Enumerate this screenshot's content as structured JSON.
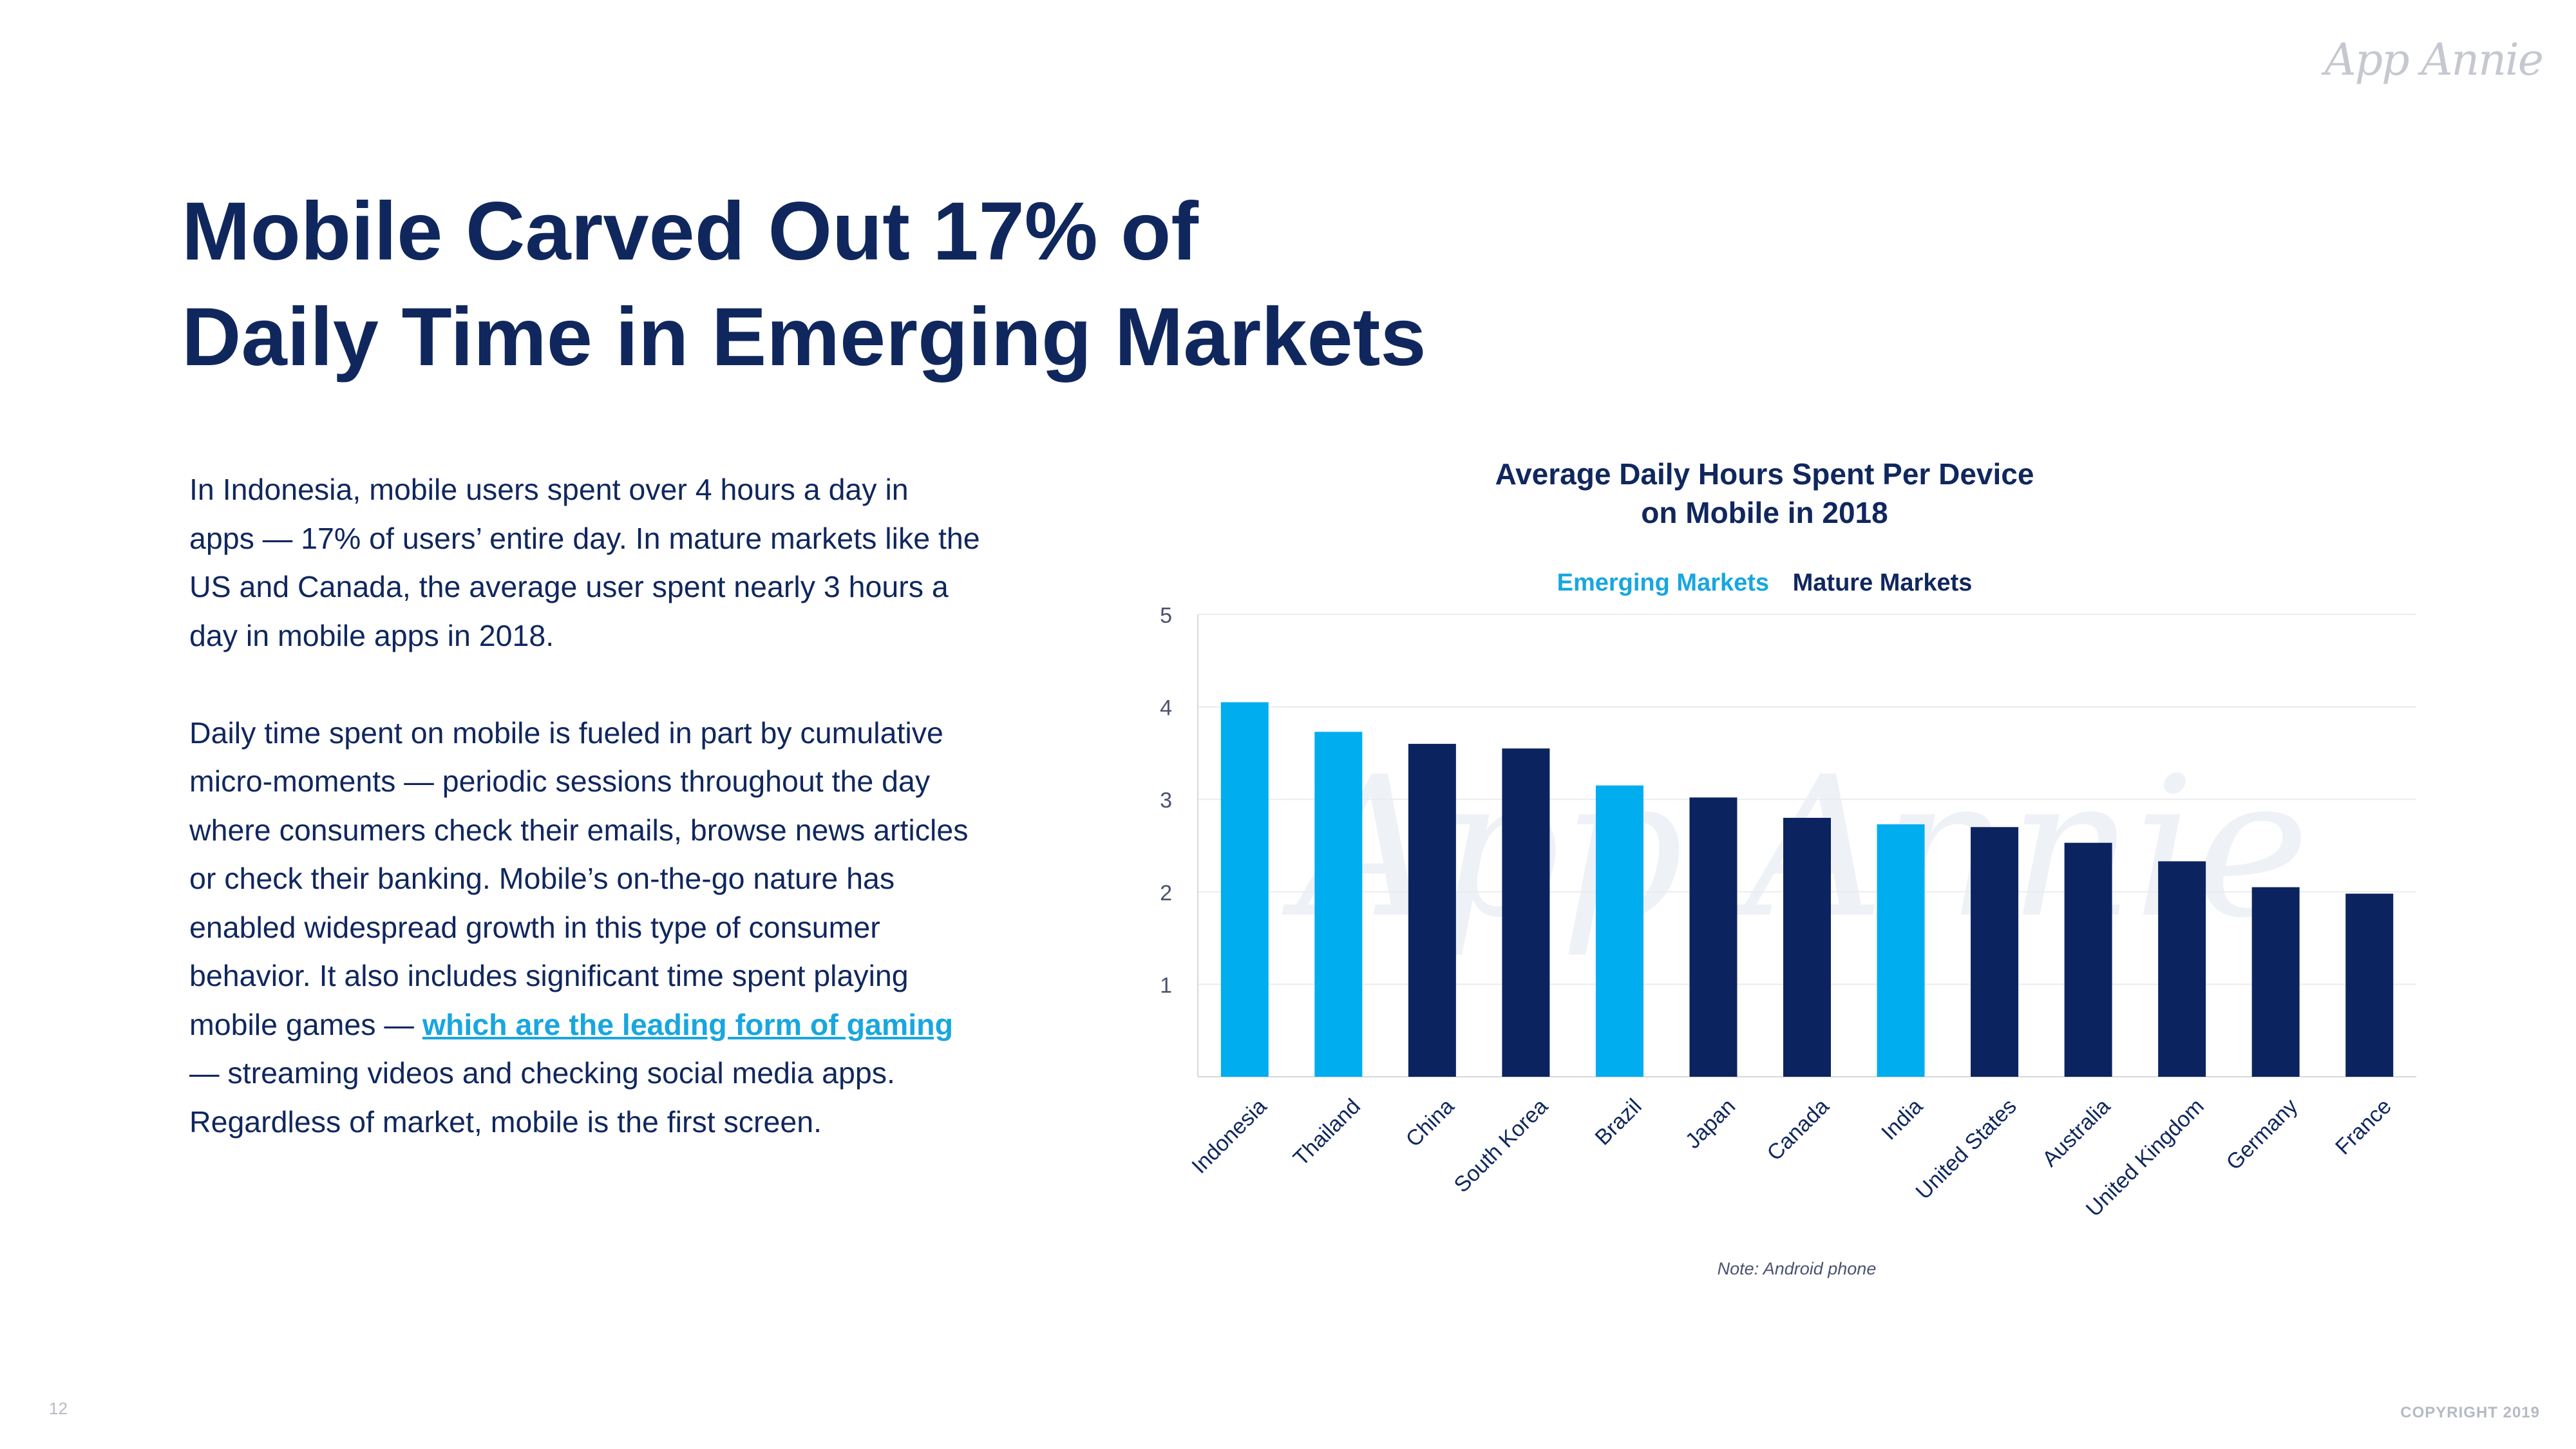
{
  "brand": {
    "logo_text": "App Annie",
    "watermark_text": "App Annie",
    "colors": {
      "navy": "#10275e",
      "emerging": "#00adee",
      "mature": "#0b2460",
      "link": "#18a6df"
    }
  },
  "headline": {
    "line1": "Mobile Carved Out 17% of",
    "line2": "Daily Time in Emerging Markets"
  },
  "body": {
    "paragraph1": "In Indonesia, mobile users spent over 4 hours a day in apps — 17% of users’ entire day. In mature markets like the US and Canada, the average user spent nearly 3 hours a day in mobile apps in 2018.",
    "paragraph2_before_link": "Daily time spent on mobile is fueled in part by cumulative micro-moments — periodic sessions throughout the day where consumers check their emails, browse news articles or check their banking. Mobile’s on-the-go nature has enabled widespread growth in this type of consumer behavior. It also includes significant time spent playing mobile games — ",
    "paragraph2_link": "which are the leading form of gaming",
    "paragraph2_after_link": " — streaming videos and checking social media apps. Regardless of market, mobile is the first screen."
  },
  "chart_data": {
    "type": "bar",
    "title_line1": "Average Daily Hours Spent Per Device",
    "title_line2": "on Mobile in 2018",
    "legend": {
      "emerging": "Emerging Markets",
      "mature": "Mature Markets"
    },
    "legend_placement": "top-center",
    "grid": true,
    "ylim": [
      0,
      5
    ],
    "yticks": [
      1,
      2,
      3,
      4,
      5
    ],
    "categories": [
      "Indonesia",
      "Thailand",
      "China",
      "South Korea",
      "Brazil",
      "Japan",
      "Canada",
      "India",
      "United States",
      "Australia",
      "United Kingdom",
      "Germany",
      "France"
    ],
    "values": [
      4.05,
      3.73,
      3.6,
      3.55,
      3.15,
      3.02,
      2.8,
      2.73,
      2.7,
      2.53,
      2.33,
      2.05,
      1.98
    ],
    "groups": [
      "emerging",
      "emerging",
      "mature",
      "mature",
      "emerging",
      "mature",
      "mature",
      "emerging",
      "mature",
      "mature",
      "mature",
      "mature",
      "mature"
    ],
    "note": "Note: Android phone"
  },
  "footer": {
    "page_number": "12",
    "copyright": "COPYRIGHT 2019"
  }
}
